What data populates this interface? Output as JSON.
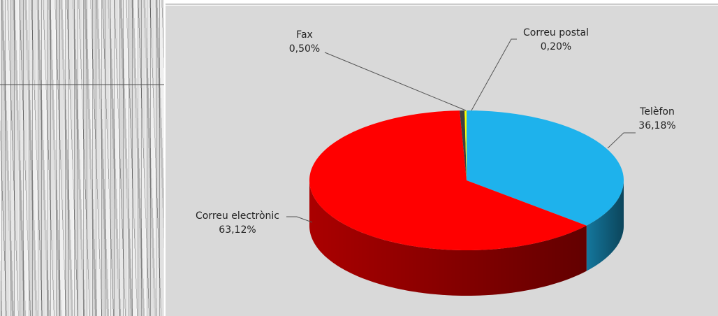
{
  "chart_data": {
    "type": "pie3d",
    "categories": [
      "Telèfon",
      "Correu electrònic",
      "Fax",
      "Correu postal"
    ],
    "values": [
      36.18,
      63.12,
      0.5,
      0.2
    ],
    "value_labels": [
      "36,18%",
      "63,12%",
      "0,50%",
      "0,20%"
    ],
    "colors": [
      "#1eb2ec",
      "#ff0000",
      "#404040",
      "#ffff00"
    ]
  }
}
